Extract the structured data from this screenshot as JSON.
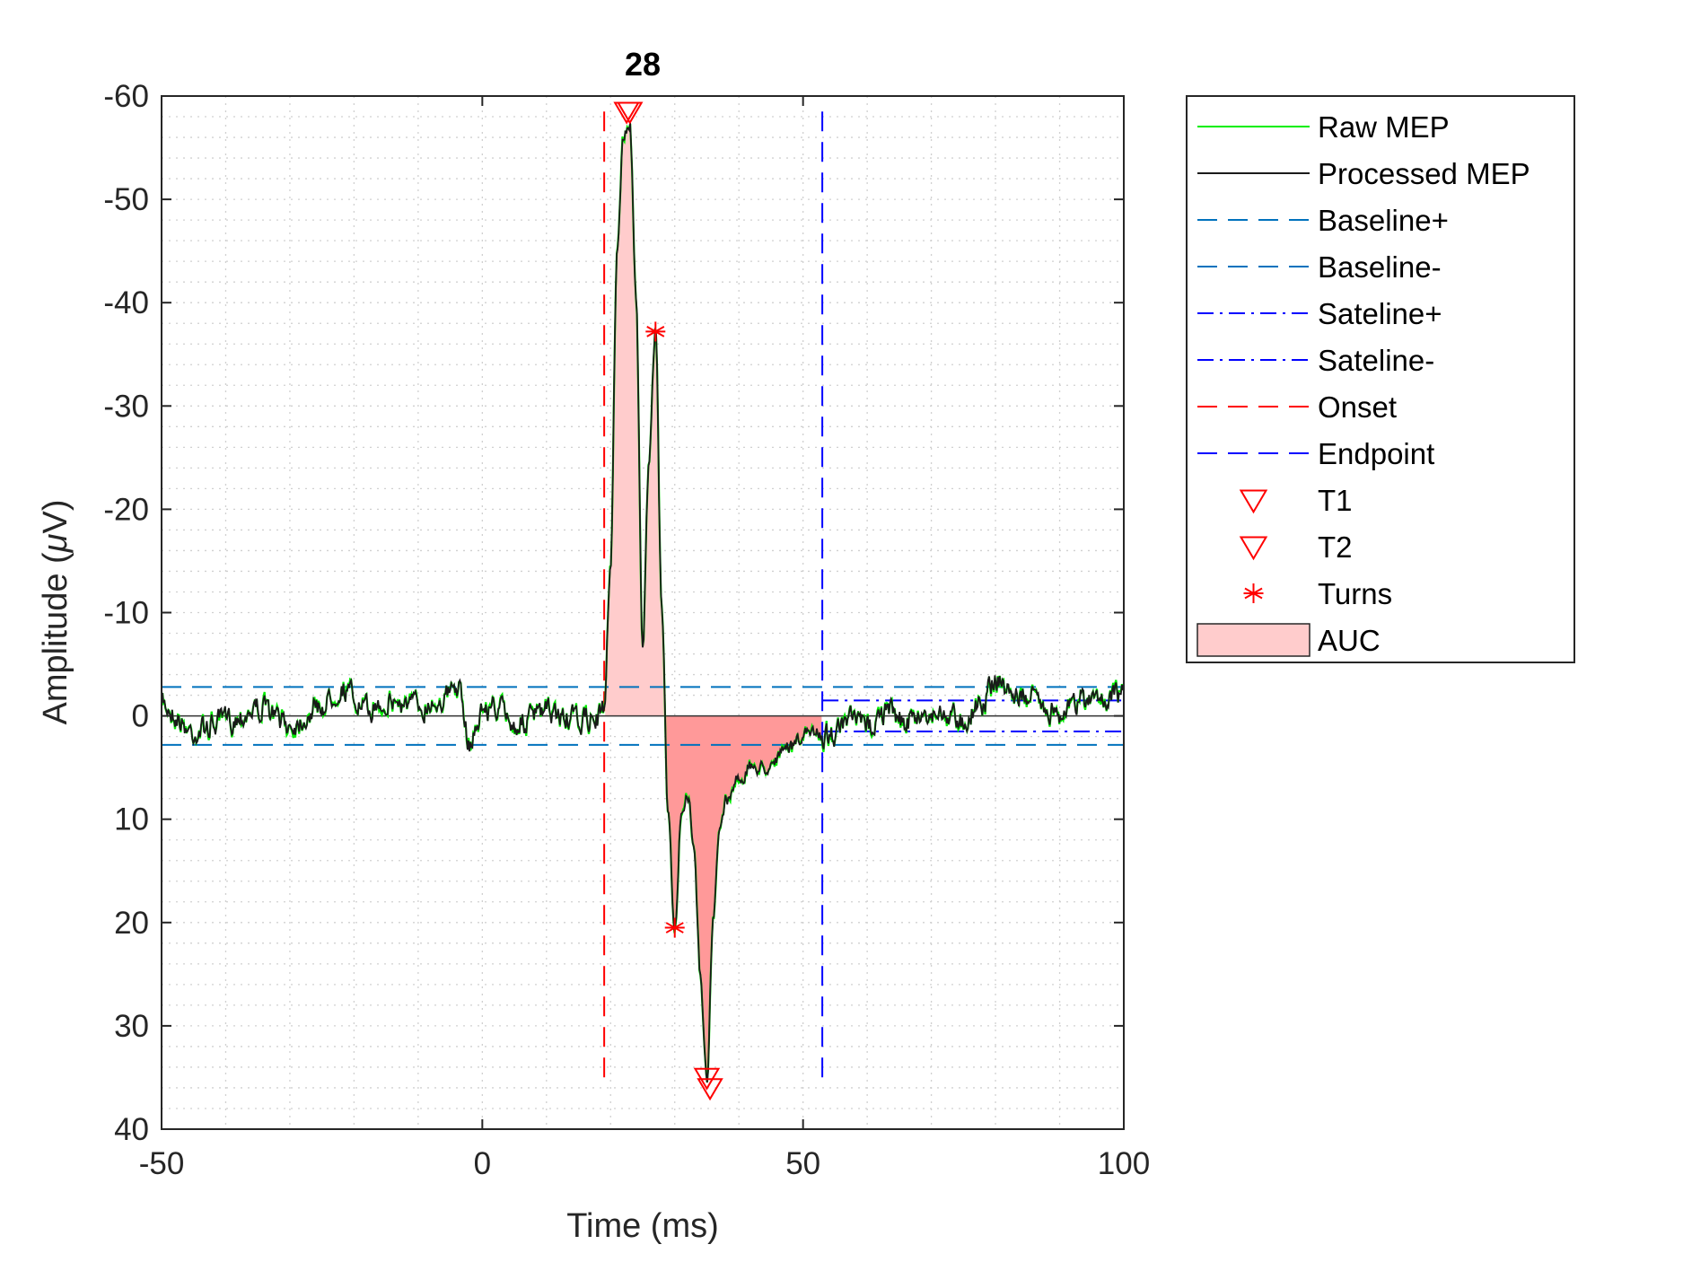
{
  "chart_data": {
    "type": "line",
    "title": "28",
    "xlabel": "Time (ms)",
    "ylabel_prefix": "Amplitude (",
    "ylabel_mu": "μ",
    "ylabel_suffix": "V)",
    "xlim": [
      -50,
      100
    ],
    "ylim": [
      -60,
      40
    ],
    "y_axis_reversed": true,
    "xticks": [
      -50,
      0,
      50,
      100
    ],
    "yticks": [
      -60,
      -50,
      -40,
      -30,
      -20,
      -10,
      0,
      10,
      20,
      30,
      40
    ],
    "xtick_labels": [
      "-50",
      "0",
      "50",
      "100"
    ],
    "ytick_labels": [
      "-60",
      "-50",
      "-40",
      "-30",
      "-20",
      "-10",
      "0",
      "10",
      "20",
      "30",
      "40"
    ],
    "grid": true,
    "minor_grid": true,
    "legend_position": "outside-right-top",
    "series": [
      {
        "name": "Raw MEP",
        "color": "#00ee00"
      },
      {
        "name": "Processed MEP",
        "color": "#1a1a1a"
      }
    ],
    "mep_key_points": [
      [
        -50,
        -1.2
      ],
      [
        -45,
        1.5
      ],
      [
        -40,
        0.5
      ],
      [
        -35,
        -0.8
      ],
      [
        -30,
        0.8
      ],
      [
        -25,
        -1.0
      ],
      [
        -22,
        -2.8
      ],
      [
        -18,
        -0.5
      ],
      [
        -15,
        -1.5
      ],
      [
        -10,
        -1.0
      ],
      [
        -5,
        -2.0
      ],
      [
        -4,
        -3.0
      ],
      [
        -2,
        2.5
      ],
      [
        0,
        -0.5
      ],
      [
        2,
        -1.0
      ],
      [
        5,
        0.8
      ],
      [
        10,
        -0.3
      ],
      [
        15,
        0.5
      ],
      [
        18,
        0.2
      ],
      [
        19,
        -0.5
      ],
      [
        20,
        -15
      ],
      [
        21,
        -45
      ],
      [
        22,
        -56
      ],
      [
        23,
        -57.5
      ],
      [
        24,
        -40
      ],
      [
        25,
        -7
      ],
      [
        26,
        -25
      ],
      [
        27,
        -37
      ],
      [
        28,
        -10
      ],
      [
        29,
        10
      ],
      [
        30,
        20.5
      ],
      [
        31,
        10
      ],
      [
        32,
        8
      ],
      [
        33,
        12
      ],
      [
        34,
        25
      ],
      [
        35,
        35.5
      ],
      [
        36,
        20
      ],
      [
        37,
        11
      ],
      [
        38,
        8
      ],
      [
        40,
        6
      ],
      [
        42,
        5
      ],
      [
        44,
        5
      ],
      [
        46,
        4
      ],
      [
        48,
        3
      ],
      [
        50,
        2
      ],
      [
        52,
        1.5
      ],
      [
        53,
        2
      ],
      [
        55,
        1.5
      ],
      [
        58,
        0.5
      ],
      [
        60,
        1.0
      ],
      [
        63,
        -0.5
      ],
      [
        66,
        0.5
      ],
      [
        70,
        -0.3
      ],
      [
        75,
        0.3
      ],
      [
        78,
        -1.5
      ],
      [
        80,
        -3.5
      ],
      [
        83,
        -2.0
      ],
      [
        86,
        -1.5
      ],
      [
        90,
        -0.5
      ],
      [
        94,
        -1.5
      ],
      [
        97,
        -2.0
      ],
      [
        100,
        -2.0
      ]
    ],
    "noise_amplitude": 0.9,
    "baseline_plus": 2.8,
    "baseline_minus": -2.8,
    "sateline_plus": 1.5,
    "sateline_minus": -1.5,
    "sateline_start": 53,
    "onset": 19,
    "endpoint": 53,
    "t1": [
      [
        23,
        -58.5
      ],
      [
        35.5,
        36
      ]
    ],
    "t2": [
      [
        22.5,
        -58.5
      ],
      [
        35,
        35
      ]
    ],
    "turns": [
      [
        27,
        -37.2
      ],
      [
        30,
        20.5
      ]
    ],
    "auc_range": [
      19,
      53
    ],
    "colors": {
      "raw": "#00ee00",
      "processed": "#1a1a1a",
      "baseline": "#0072bd",
      "sateline": "#0000ff",
      "onset": "#ff0000",
      "endpoint": "#0000ff",
      "markers": "#ff0000",
      "auc_fill": "#ff9999",
      "auc_fill_light": "#ffcccc"
    },
    "legend": [
      {
        "label": "Raw MEP",
        "style": "solid",
        "color": "#00ee00"
      },
      {
        "label": "Processed MEP",
        "style": "solid",
        "color": "#1a1a1a"
      },
      {
        "label": "Baseline+",
        "style": "dashed",
        "color": "#0072bd"
      },
      {
        "label": "Baseline-",
        "style": "dashed",
        "color": "#0072bd"
      },
      {
        "label": "Sateline+",
        "style": "dashdot",
        "color": "#0000ff"
      },
      {
        "label": "Sateline-",
        "style": "dashdot",
        "color": "#0000ff"
      },
      {
        "label": "Onset",
        "style": "dashed",
        "color": "#ff0000"
      },
      {
        "label": "Endpoint",
        "style": "dashed",
        "color": "#0000ff"
      },
      {
        "label": "T1",
        "style": "triangle",
        "color": "#ff0000"
      },
      {
        "label": "T2",
        "style": "triangle",
        "color": "#ff0000"
      },
      {
        "label": "Turns",
        "style": "asterisk",
        "color": "#ff0000"
      },
      {
        "label": "AUC",
        "style": "patch",
        "color": "#ffcccc"
      }
    ]
  }
}
